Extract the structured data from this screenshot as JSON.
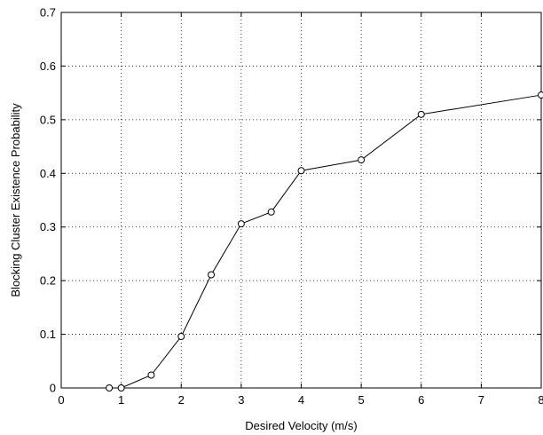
{
  "chart_data": {
    "type": "line",
    "title": "",
    "xlabel": "Desired Velocity (m/s)",
    "ylabel": "Blocking Cluster Existence Probability",
    "xlim": [
      0,
      8
    ],
    "ylim": [
      0,
      0.7
    ],
    "xticks": [
      "0",
      "1",
      "2",
      "3",
      "4",
      "5",
      "6",
      "7",
      "8"
    ],
    "yticks": [
      "0",
      "0.1",
      "0.2",
      "0.3",
      "0.4",
      "0.5",
      "0.6",
      "0.7"
    ],
    "grid": true,
    "grid_style": "dotted",
    "marker": "circle",
    "line_color": "#000000",
    "series": [
      {
        "x": [
          0.8,
          1.0,
          1.5,
          2.0,
          2.5,
          3.0,
          3.5,
          4.0,
          5.0,
          6.0,
          8.0
        ],
        "y": [
          0.0,
          0.0,
          0.024,
          0.096,
          0.211,
          0.306,
          0.328,
          0.405,
          0.425,
          0.51,
          0.546
        ]
      }
    ]
  }
}
